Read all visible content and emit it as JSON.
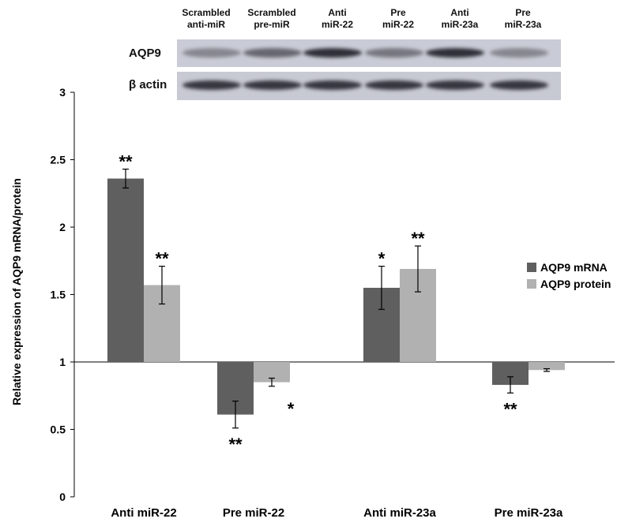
{
  "western_blot": {
    "lanes": [
      {
        "line1": "Scrambled",
        "line2": "anti-miR"
      },
      {
        "line1": "Scrambled",
        "line2": "pre-miR"
      },
      {
        "line1": "Anti",
        "line2": "miR-22"
      },
      {
        "line1": "Pre",
        "line2": "miR-22"
      },
      {
        "line1": "Anti",
        "line2": "miR-23a"
      },
      {
        "line1": "Pre",
        "line2": "miR-23a"
      }
    ],
    "rows": [
      {
        "label": "AQP9",
        "band_intensity": [
          0.35,
          0.55,
          0.9,
          0.45,
          0.9,
          0.35
        ]
      },
      {
        "label": "β actin",
        "band_intensity": [
          0.85,
          0.85,
          0.85,
          0.85,
          0.85,
          0.85
        ]
      }
    ]
  },
  "chart_data": {
    "type": "bar",
    "title": "",
    "xlabel": "",
    "ylabel": "Relative expression of AQP9 mRNA/protein",
    "ylim": [
      0,
      3
    ],
    "baseline": 1,
    "yticks": [
      "0",
      "0.5",
      "1",
      "1.5",
      "2",
      "2.5",
      "3"
    ],
    "categories": [
      "Anti miR-22",
      "Pre miR-22",
      "Anti miR-23a",
      "Pre miR-23a"
    ],
    "series": [
      {
        "name": "AQP9 mRNA",
        "color": "#5f5f5f",
        "values": [
          2.36,
          0.61,
          1.55,
          0.83
        ],
        "errors": [
          0.07,
          0.1,
          0.16,
          0.06
        ],
        "significance": [
          "**",
          "**",
          "*",
          "**"
        ]
      },
      {
        "name": "AQP9 protein",
        "color": "#b1b1b1",
        "values": [
          1.57,
          0.85,
          1.69,
          0.94
        ],
        "errors": [
          0.14,
          0.03,
          0.17,
          0.01
        ],
        "significance": [
          "**",
          "*",
          "**",
          ""
        ]
      }
    ],
    "legend_position": "right"
  }
}
